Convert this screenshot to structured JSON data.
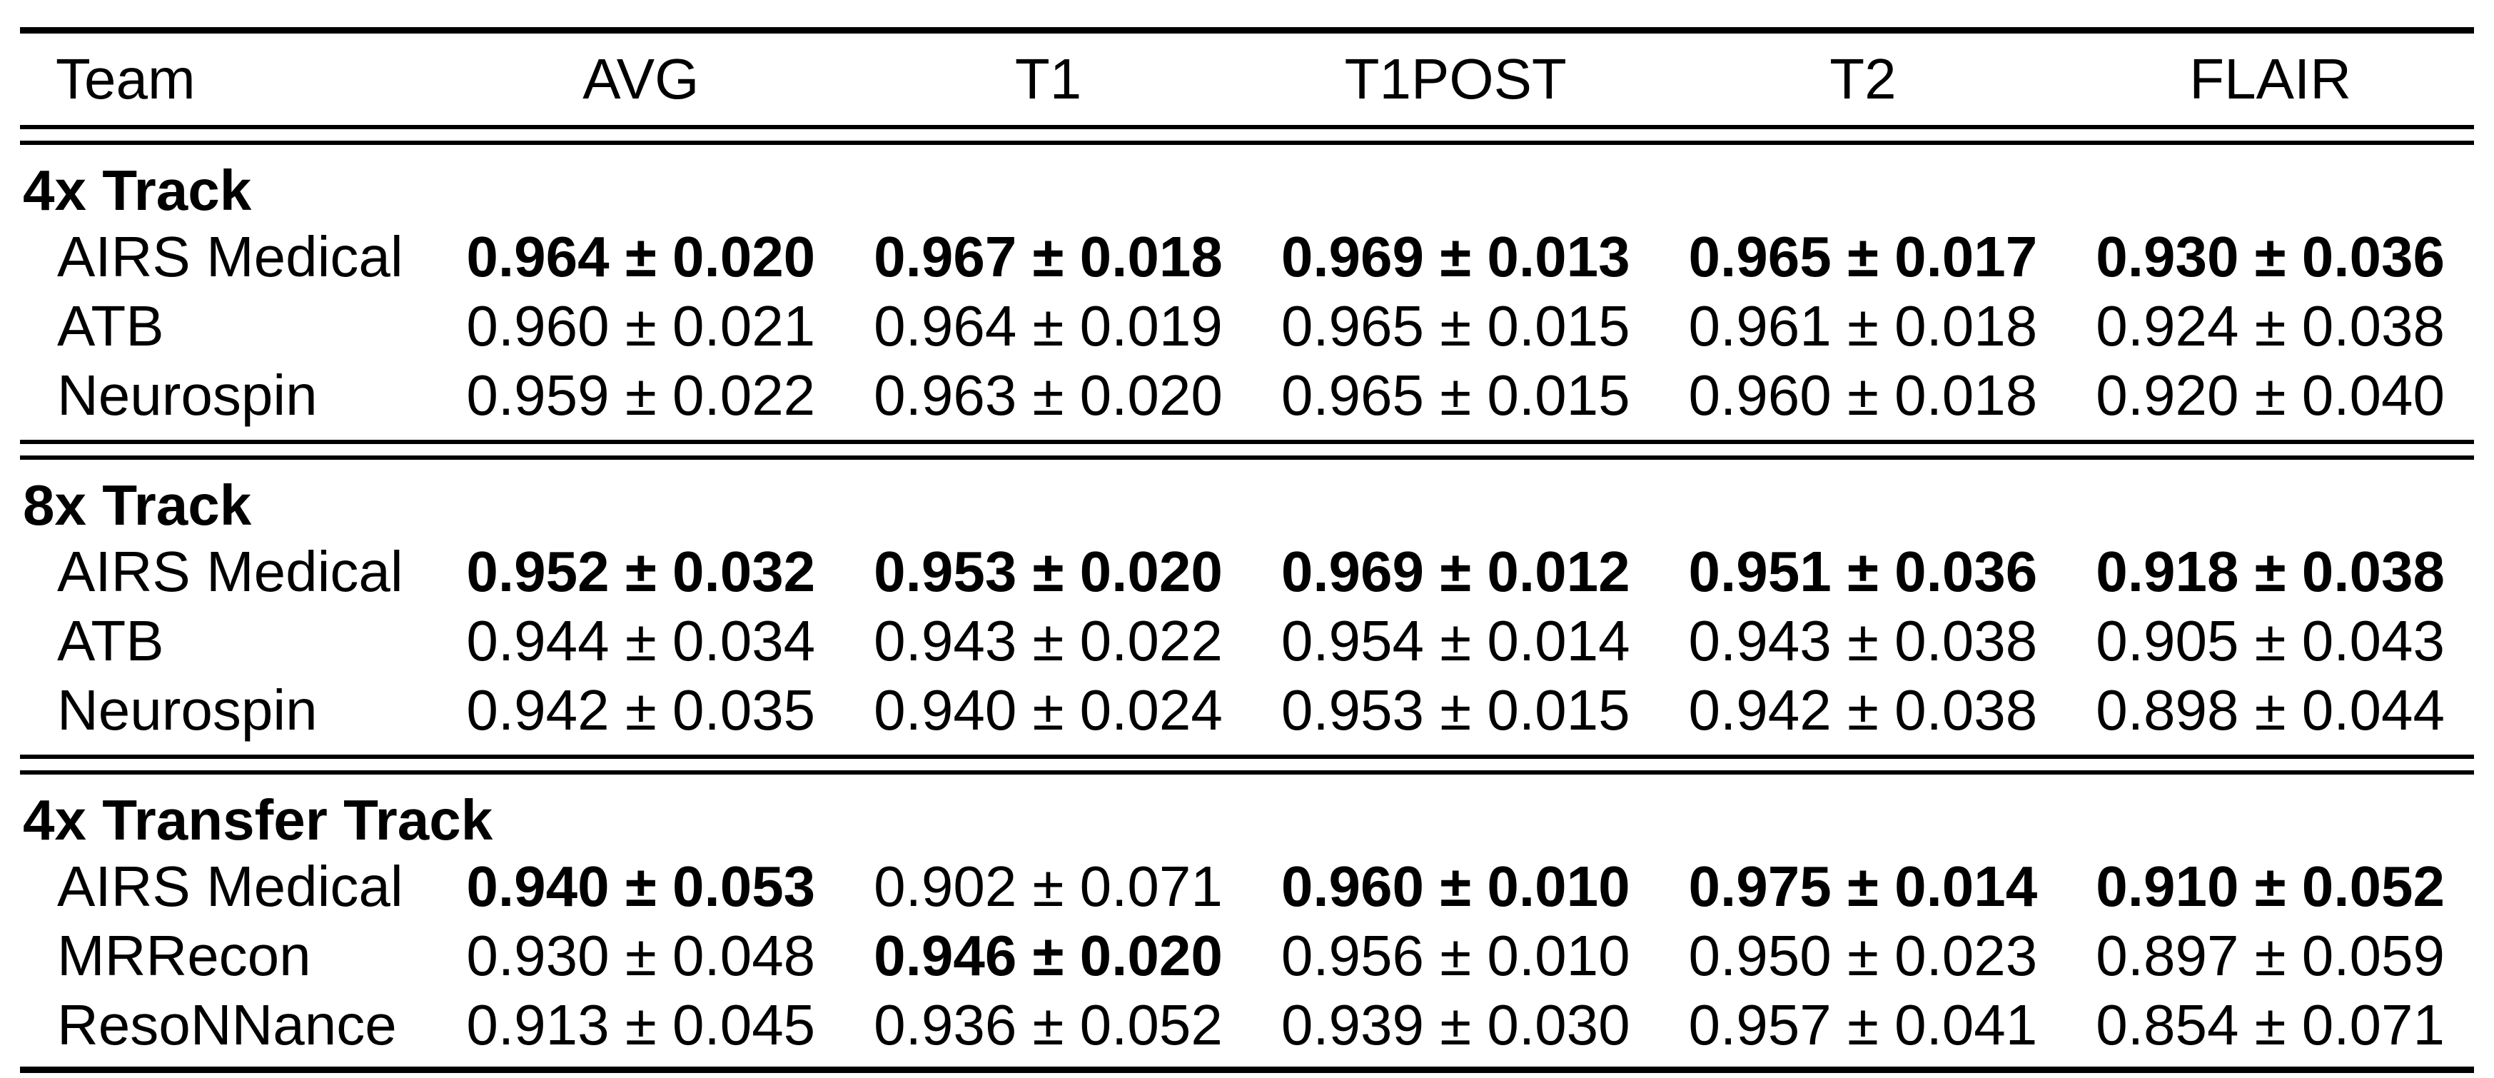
{
  "table": {
    "header": {
      "team": "Team",
      "cols": [
        "AVG",
        "T1",
        "T1POST",
        "T2",
        "FLAIR"
      ]
    },
    "sections": [
      {
        "title": "4x Track",
        "rows": [
          {
            "team": "AIRS Medical",
            "values": [
              "0.964 ± 0.020",
              "0.967 ± 0.018",
              "0.969 ± 0.013",
              "0.965 ± 0.017",
              "0.930 ± 0.036"
            ],
            "bold": [
              true,
              true,
              true,
              true,
              true
            ]
          },
          {
            "team": "ATB",
            "values": [
              "0.960 ± 0.021",
              "0.964 ± 0.019",
              "0.965 ± 0.015",
              "0.961 ± 0.018",
              "0.924 ± 0.038"
            ],
            "bold": [
              false,
              false,
              false,
              false,
              false
            ]
          },
          {
            "team": "Neurospin",
            "values": [
              "0.959 ± 0.022",
              "0.963 ± 0.020",
              "0.965 ± 0.015",
              "0.960 ± 0.018",
              "0.920 ± 0.040"
            ],
            "bold": [
              false,
              false,
              false,
              false,
              false
            ]
          }
        ]
      },
      {
        "title": "8x Track",
        "rows": [
          {
            "team": "AIRS Medical",
            "values": [
              "0.952 ± 0.032",
              "0.953 ± 0.020",
              "0.969 ± 0.012",
              "0.951 ± 0.036",
              "0.918 ± 0.038"
            ],
            "bold": [
              true,
              true,
              true,
              true,
              true
            ]
          },
          {
            "team": "ATB",
            "values": [
              "0.944 ± 0.034",
              "0.943 ± 0.022",
              "0.954 ± 0.014",
              "0.943 ± 0.038",
              "0.905 ± 0.043"
            ],
            "bold": [
              false,
              false,
              false,
              false,
              false
            ]
          },
          {
            "team": "Neurospin",
            "values": [
              "0.942 ± 0.035",
              "0.940 ± 0.024",
              "0.953 ± 0.015",
              "0.942 ± 0.038",
              "0.898 ± 0.044"
            ],
            "bold": [
              false,
              false,
              false,
              false,
              false
            ]
          }
        ]
      },
      {
        "title": "4x Transfer Track",
        "rows": [
          {
            "team": "AIRS Medical",
            "values": [
              "0.940 ± 0.053",
              "0.902 ± 0.071",
              "0.960 ± 0.010",
              "0.975 ± 0.014",
              "0.910 ± 0.052"
            ],
            "bold": [
              true,
              false,
              true,
              true,
              true
            ]
          },
          {
            "team": "MRRecon",
            "values": [
              "0.930 ± 0.048",
              "0.946 ± 0.020",
              "0.956 ± 0.010",
              "0.950 ± 0.023",
              "0.897 ± 0.059"
            ],
            "bold": [
              false,
              true,
              false,
              false,
              false
            ]
          },
          {
            "team": "ResoNNance",
            "values": [
              "0.913 ± 0.045",
              "0.936 ± 0.052",
              "0.939 ± 0.030",
              "0.957 ± 0.041",
              "0.854 ± 0.071"
            ],
            "bold": [
              false,
              false,
              false,
              false,
              false
            ]
          }
        ]
      }
    ]
  }
}
